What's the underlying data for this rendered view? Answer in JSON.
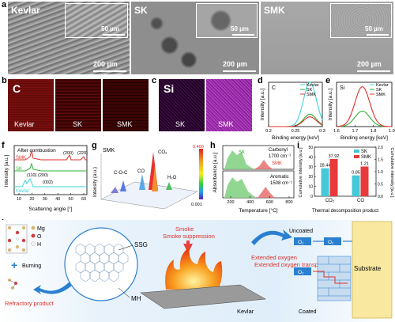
{
  "panel_labels": {
    "a": "a",
    "b": "b",
    "c": "c",
    "d": "d",
    "e": "e",
    "f": "f",
    "g": "g",
    "h": "h",
    "i": "i",
    "j": "j"
  },
  "sem": [
    {
      "name": "Kevlar",
      "inset_scale": "50 µm",
      "main_scale": "200 µm"
    },
    {
      "name": "SK",
      "inset_scale": "50 µm",
      "main_scale": "200 µm"
    },
    {
      "name": "SMK",
      "inset_scale": "50 µm",
      "main_scale": "200 µm"
    }
  ],
  "eds_b": {
    "element": "C",
    "samples": [
      "Kevlar",
      "SK",
      "SMK"
    ]
  },
  "eds_c": {
    "element": "Si",
    "samples": [
      "SK",
      "SMK"
    ]
  },
  "chart_data": [
    {
      "type": "line",
      "panel": "d",
      "title": "C",
      "xlabel": "Binding energy [keV]",
      "ylabel": "Intensity [a.u.]",
      "xlim": [
        0.2,
        0.3
      ],
      "x_ticks": [
        "0.2",
        "0.25",
        "0.3"
      ],
      "series": [
        {
          "name": "Kevlar",
          "color": "#3fd6d6",
          "peak": 0.277,
          "height": 1.0
        },
        {
          "name": "SK",
          "color": "#33b233",
          "peak": 0.277,
          "height": 0.28
        },
        {
          "name": "SMK",
          "color": "#e0302a",
          "peak": 0.277,
          "height": 0.22
        }
      ]
    },
    {
      "type": "line",
      "panel": "e",
      "title": "Si",
      "xlabel": "Binding energy [keV]",
      "ylabel": "Intensity [a.u.]",
      "xlim": [
        1.6,
        1.9
      ],
      "x_ticks": [
        "1.6",
        "1.7",
        "1.8",
        "1.9"
      ],
      "series": [
        {
          "name": "Kevlar",
          "color": "#3fd6d6",
          "peak": 1.74,
          "height": 0.0
        },
        {
          "name": "SK",
          "color": "#33b233",
          "peak": 1.74,
          "height": 0.35
        },
        {
          "name": "SMK",
          "color": "#e0302a",
          "peak": 1.74,
          "height": 0.9
        }
      ]
    },
    {
      "type": "line",
      "panel": "f",
      "title": "After combustion",
      "xlabel": "Scattering angle [°]",
      "ylabel": "Intensity [a.u.]",
      "x_ticks": [
        "10",
        "20",
        "30",
        "40",
        "50",
        "60"
      ],
      "series": [
        {
          "name": "SMK",
          "color": "#e0302a"
        },
        {
          "name": "SK",
          "color": "#33b233"
        },
        {
          "name": "Kevlar",
          "color": "#3fd6d6"
        }
      ],
      "annotations": [
        "(200)",
        "(220)",
        "(110)",
        "(200)",
        "(002)"
      ]
    },
    {
      "type": "line",
      "panel": "g",
      "title": "SMK",
      "ylabel": "Intensity (a.u.)",
      "annotations": [
        "C-O-C",
        "CO",
        "CO₂",
        "H₂O"
      ],
      "colorbar": {
        "max": "0.400",
        "min": "0.001"
      }
    },
    {
      "type": "area",
      "panel": "h",
      "xlabel": "Temperature [°C]",
      "ylabel": "Absorbance [a.u.]",
      "x_ticks": [
        "200",
        "400",
        "600",
        "800"
      ],
      "series": [
        {
          "name": "SK",
          "color": "#46b446"
        },
        {
          "name": "SMK",
          "color": "#e0302a"
        }
      ],
      "subpanels": [
        {
          "label": "Carbonyl",
          "wavenumber": "1700 cm⁻¹"
        },
        {
          "label": "Aromatic",
          "wavenumber": "1508 cm⁻¹"
        }
      ]
    },
    {
      "type": "bar",
      "panel": "i",
      "xlabel": "Thermal decomposition product",
      "ylabel_left": "Cumulative intensity [a.u.]",
      "ylabel_right": "Cumulative intensity [a.u.]",
      "categories": [
        "CO₂",
        "CO"
      ],
      "series": [
        {
          "name": "SK",
          "color": "#45c8d8",
          "values": [
            28.44,
            0.85
          ]
        },
        {
          "name": "SMK",
          "color": "#e83a3a",
          "values": [
            37.92,
            1.21
          ]
        }
      ],
      "ylim_left": [
        0,
        50
      ],
      "ylim_right": [
        0,
        2.0
      ],
      "left_ticks": [
        "0",
        "10",
        "20",
        "30",
        "40",
        "50"
      ],
      "right_ticks": [
        "0.0",
        "0.5",
        "1.0",
        "1.5",
        "2.0"
      ]
    }
  ],
  "schematic": {
    "legend": [
      {
        "sym": "Mg",
        "color": "#d8b87a"
      },
      {
        "sym": "O",
        "color": "#d04040"
      },
      {
        "sym": "H",
        "color": "#f0f0f0"
      }
    ],
    "burning": "Burning",
    "refractory": "Refractory product",
    "ssg": "SSG",
    "mh": "MH",
    "smoke": "Smoke suppression",
    "kevlar": "Kevlar",
    "extended": "Extended oxygen transport path",
    "uncoated": "Uncoated",
    "coated": "Coated",
    "substrate": "Substrate",
    "o2": "O₂"
  }
}
